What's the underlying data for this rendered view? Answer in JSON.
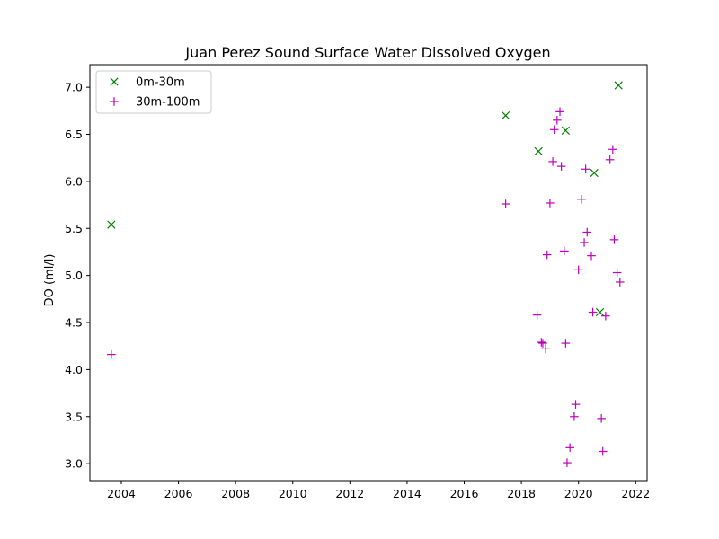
{
  "chart_data": {
    "type": "scatter",
    "title": "Juan Perez Sound Surface Water Dissolved Oxygen",
    "xlabel": "",
    "ylabel": "DO (ml/l)",
    "xlim": [
      2002.9,
      2022.4
    ],
    "ylim": [
      2.82,
      7.24
    ],
    "xticks": [
      2004,
      2006,
      2008,
      2010,
      2012,
      2014,
      2016,
      2018,
      2020,
      2022
    ],
    "yticks": [
      3.0,
      3.5,
      4.0,
      4.5,
      5.0,
      5.5,
      6.0,
      6.5,
      7.0
    ],
    "grid": false,
    "legend_position": "top-left",
    "series": [
      {
        "name": "0m-30m",
        "marker": "x",
        "color": "#008000",
        "points": [
          [
            2003.65,
            5.54
          ],
          [
            2017.45,
            6.7
          ],
          [
            2018.6,
            6.32
          ],
          [
            2019.55,
            6.54
          ],
          [
            2020.55,
            6.09
          ],
          [
            2020.75,
            4.61
          ],
          [
            2021.4,
            7.02
          ]
        ]
      },
      {
        "name": "30m-100m",
        "marker": "+",
        "color": "#bf00bf",
        "points": [
          [
            2003.65,
            4.16
          ],
          [
            2017.45,
            5.76
          ],
          [
            2018.55,
            4.58
          ],
          [
            2018.7,
            4.29
          ],
          [
            2018.75,
            4.28
          ],
          [
            2018.85,
            4.22
          ],
          [
            2018.9,
            5.22
          ],
          [
            2019.0,
            5.77
          ],
          [
            2019.1,
            6.21
          ],
          [
            2019.15,
            6.55
          ],
          [
            2019.25,
            6.65
          ],
          [
            2019.35,
            6.74
          ],
          [
            2019.4,
            6.16
          ],
          [
            2019.5,
            5.26
          ],
          [
            2019.55,
            4.28
          ],
          [
            2019.6,
            3.01
          ],
          [
            2019.7,
            3.17
          ],
          [
            2019.85,
            3.5
          ],
          [
            2019.9,
            3.63
          ],
          [
            2020.0,
            5.06
          ],
          [
            2020.1,
            5.81
          ],
          [
            2020.2,
            5.35
          ],
          [
            2020.25,
            6.13
          ],
          [
            2020.3,
            5.46
          ],
          [
            2020.45,
            5.21
          ],
          [
            2020.5,
            4.61
          ],
          [
            2020.8,
            3.48
          ],
          [
            2020.85,
            3.13
          ],
          [
            2020.95,
            4.57
          ],
          [
            2021.1,
            6.23
          ],
          [
            2021.2,
            6.34
          ],
          [
            2021.25,
            5.38
          ],
          [
            2021.35,
            5.03
          ],
          [
            2021.45,
            4.93
          ]
        ]
      }
    ]
  }
}
